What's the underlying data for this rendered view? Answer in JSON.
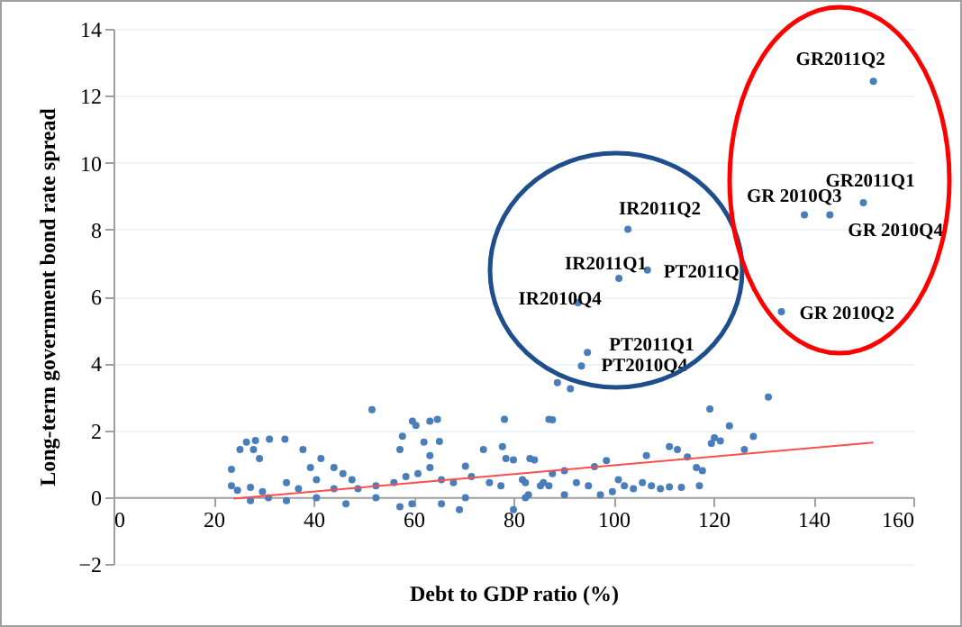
{
  "chart_data": {
    "type": "scatter",
    "xlabel": "Debt to GDP ratio (%)",
    "ylabel": "Long-term government bond rate spread",
    "xlim": [
      0,
      160
    ],
    "ylim": [
      -2,
      14
    ],
    "xticks": [
      0,
      20,
      40,
      60,
      80,
      100,
      120,
      140,
      160
    ],
    "yticks": [
      -2,
      0,
      2,
      4,
      6,
      8,
      10,
      12,
      14
    ],
    "grid": "y",
    "marker": "circle",
    "series": [
      {
        "color": "#4a7ebb",
        "x": [
          23.6,
          25.3,
          26.6,
          28.4,
          31.2,
          34.3,
          28.0,
          29.2,
          37.9,
          41.5,
          51.7,
          59.8,
          60.5,
          63.3,
          64.8,
          57.8,
          65.2,
          62.1,
          57.3,
          78.2,
          77.8,
          74.0,
          87.1,
          83.3,
          78.5,
          70.4,
          23.6,
          24.8,
          27.4,
          29.8,
          34.6,
          37.0,
          39.4,
          44.1,
          45.9,
          47.7,
          40.6,
          44.1,
          48.9,
          52.5,
          56.1,
          58.5,
          60.9,
          63.3,
          63.3,
          65.6,
          68.0,
          71.6,
          75.2,
          77.5,
          82.4,
          86.0,
          57.3,
          59.7,
          65.6,
          69.2,
          80.0,
          46.5,
          34.6,
          27.4,
          70.4,
          52.5,
          40.6,
          31.0,
          82.4,
          87.1,
          131.0,
          119.3,
          87.8,
          123.2,
          128.0,
          120.2,
          119.6,
          121.4,
          126.2,
          111.2,
          112.8,
          114.8,
          106.6,
          116.6,
          117.8,
          96.2,
          98.6,
          90.2,
          84.2,
          80.0,
          87.8,
          92.6,
          95.0,
          101.0,
          102.2,
          104.0,
          105.8,
          107.6,
          109.4,
          111.2,
          113.6,
          117.2,
          99.8,
          97.4,
          90.2,
          85.4,
          81.8,
          83.0,
          88.8,
          91.4,
          152.0,
          150.0,
          138.2,
          143.3,
          133.6,
          102.9,
          101.1,
          106.8,
          92.9,
          94.8,
          93.6
        ],
        "values": [
          0.83,
          1.42,
          1.64,
          1.69,
          1.73,
          1.73,
          1.42,
          1.15,
          1.42,
          1.15,
          2.61,
          2.27,
          2.14,
          2.27,
          2.32,
          1.82,
          1.66,
          1.64,
          1.42,
          2.32,
          1.51,
          1.42,
          2.32,
          1.15,
          1.15,
          0.92,
          0.34,
          0.2,
          0.29,
          0.16,
          0.43,
          0.25,
          0.88,
          0.88,
          0.7,
          0.52,
          0.52,
          0.25,
          0.25,
          0.34,
          0.43,
          0.61,
          0.7,
          0.88,
          1.24,
          0.52,
          0.43,
          0.61,
          0.43,
          0.34,
          0.43,
          0.43,
          -0.29,
          -0.2,
          -0.2,
          -0.38,
          -0.38,
          -0.2,
          -0.11,
          -0.11,
          -0.02,
          -0.02,
          -0.02,
          -0.02,
          -0.02,
          0.34,
          2.99,
          2.63,
          2.31,
          2.13,
          1.81,
          1.77,
          1.6,
          1.68,
          1.42,
          1.51,
          1.42,
          1.2,
          1.24,
          0.88,
          0.79,
          0.91,
          1.09,
          0.79,
          1.11,
          1.11,
          0.7,
          0.43,
          0.34,
          0.52,
          0.34,
          0.25,
          0.43,
          0.34,
          0.25,
          0.3,
          0.29,
          0.34,
          0.16,
          0.07,
          0.07,
          0.34,
          0.52,
          0.07,
          3.42,
          3.24,
          12.43,
          8.8,
          8.44,
          8.44,
          5.54,
          8.01,
          6.54,
          6.79,
          5.81,
          4.32,
          3.92
        ]
      },
      {
        "type": "line",
        "color": "#ff4d4d",
        "marker": "none",
        "x": [
          24,
          152
        ],
        "values": [
          -0.05,
          1.63
        ]
      }
    ],
    "annotations": [
      {
        "text": "GR2011Q2",
        "x": 152.0,
        "y": 12.43
      },
      {
        "text": "GR2011Q1",
        "x": 150.0,
        "y": 8.8
      },
      {
        "text": "GR 2010Q3",
        "x": 138.2,
        "y": 8.44
      },
      {
        "text": "GR 2010Q4",
        "x": 143.3,
        "y": 8.44
      },
      {
        "text": "GR 2010Q2",
        "x": 133.6,
        "y": 5.54
      },
      {
        "text": "IR2011Q2",
        "x": 102.9,
        "y": 8.01
      },
      {
        "text": "IR2011Q1",
        "x": 101.1,
        "y": 6.54
      },
      {
        "text": "PT2011Q",
        "x": 106.8,
        "y": 6.79
      },
      {
        "text": "IR2010Q4",
        "x": 92.9,
        "y": 5.81
      },
      {
        "text": "PT2011Q1",
        "x": 94.8,
        "y": 4.32
      },
      {
        "text": "PT2010Q4",
        "x": 93.6,
        "y": 3.92
      }
    ]
  }
}
